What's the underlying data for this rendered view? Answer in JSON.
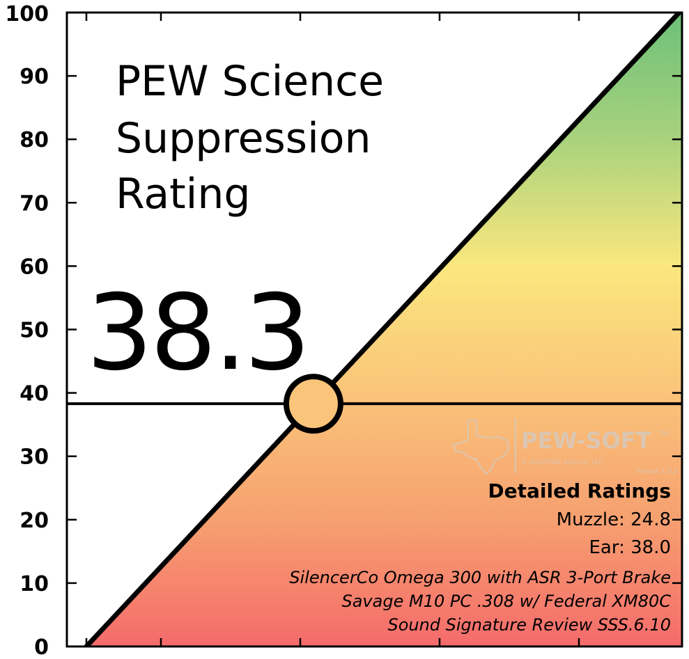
{
  "chart_data": {
    "type": "line",
    "title": [
      "PEW Science",
      "Suppression",
      "Rating"
    ],
    "rating": 38.3,
    "ylim": [
      0,
      100
    ],
    "yticks": [
      0,
      10,
      20,
      30,
      40,
      50,
      60,
      70,
      80,
      90,
      100
    ],
    "diagonal": {
      "x": [
        0,
        100
      ],
      "y": [
        0,
        100
      ]
    },
    "gradient_colors": [
      "#f56b6b",
      "#f6a070",
      "#fac47a",
      "#fbe77e",
      "#a9d27d",
      "#6cc07a"
    ],
    "detailed_ratings": {
      "heading": "Detailed Ratings",
      "lines": [
        "Muzzle: 24.8",
        "Ear: 38.0"
      ]
    },
    "reference": [
      "SilencerCo Omega 300 with ASR 3-Port Brake",
      "Savage M10 PC .308 w/ Federal XM80C",
      "Sound Signature Review SSS.6.10"
    ],
    "watermark": {
      "brand": "PEW-SOFT",
      "tm": "TM",
      "copyright": "© 2020 PEW Science, LLC",
      "version": "Version 1.0.2"
    }
  }
}
